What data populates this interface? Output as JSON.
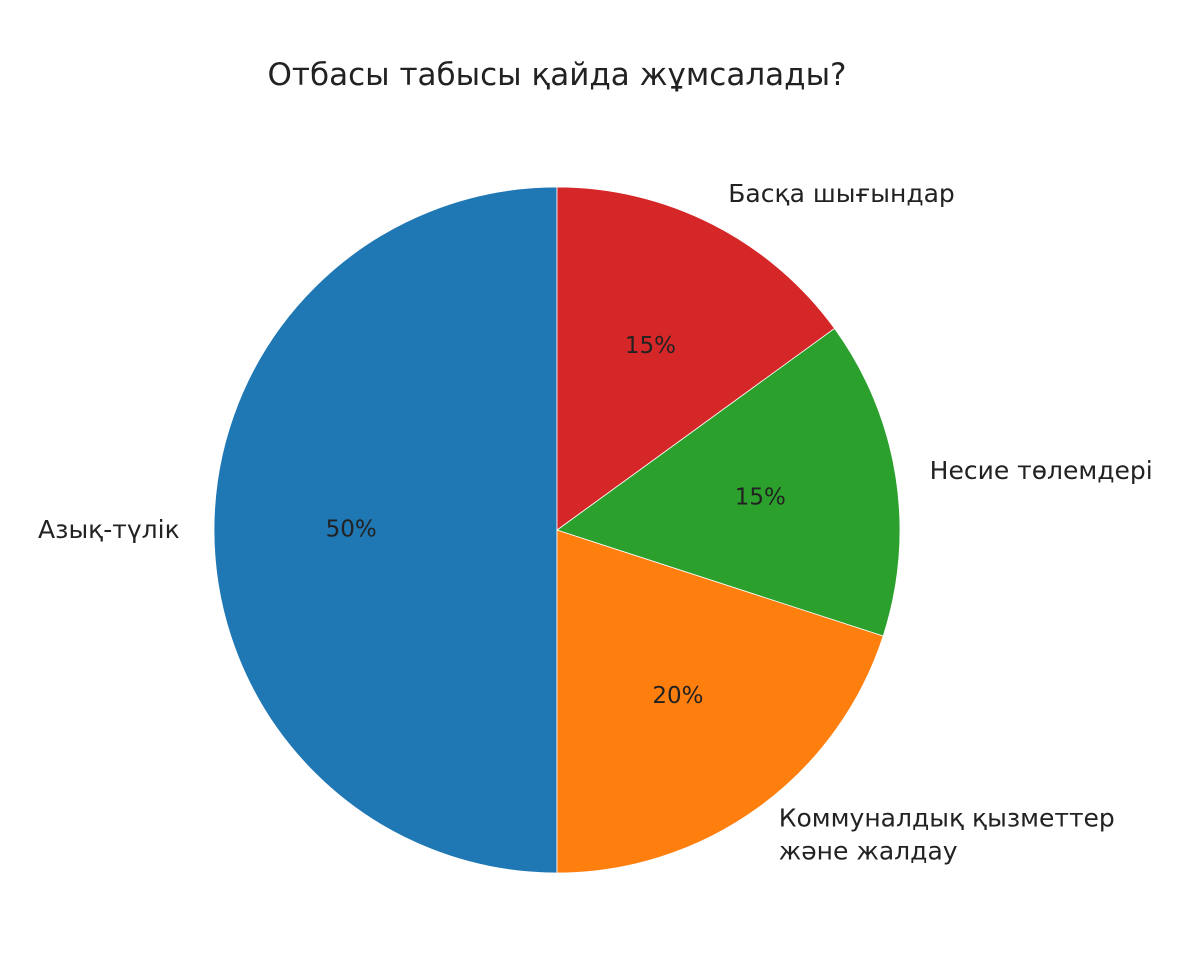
{
  "chart_data": {
    "type": "pie",
    "title": "Отбасы табысы қайда жұмсалады?",
    "categories": [
      "Азық-түлік",
      "Коммуналдық қызметтер\nжәне жалдау",
      "Несие төлемдері",
      "Басқа шығындар"
    ],
    "values": [
      50,
      20,
      15,
      15
    ],
    "value_labels": [
      "50%",
      "20%",
      "15%",
      "15%"
    ],
    "colors": [
      "#1f77b4",
      "#ff7f0e",
      "#2ca02c",
      "#d62728"
    ],
    "start_angle": 90,
    "direction": "counterclockwise"
  }
}
